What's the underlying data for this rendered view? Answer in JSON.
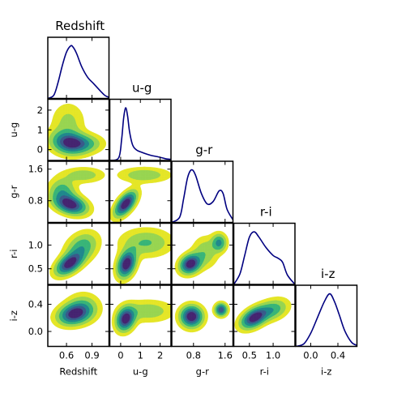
{
  "chart_data": {
    "type": "corner",
    "variables": [
      "Redshift",
      "u-g",
      "g-r",
      "r-i",
      "i-z"
    ],
    "colors": {
      "levels": [
        "#e5e629",
        "#99d653",
        "#3bb67a",
        "#22898e",
        "#3b5c8c",
        "#482672"
      ],
      "line": "#000080"
    },
    "ticks": {
      "Redshift": [
        0.6,
        0.9
      ],
      "u-g": [
        0,
        1,
        2
      ],
      "g-r": [
        0.8,
        1.6
      ],
      "r-i": [
        0.5,
        1.0
      ],
      "i-z": [
        0.0,
        0.4
      ]
    },
    "tick_labels": {
      "Redshift": [
        "0.6",
        "0.9"
      ],
      "u-g": [
        "0",
        "1",
        "2"
      ],
      "g-r": [
        "0.8",
        "1.6"
      ],
      "r-i": [
        "0.5",
        "1.0"
      ],
      "i-z": [
        "0.0",
        "0.4"
      ]
    },
    "ranges": {
      "Redshift": [
        0.38,
        1.1
      ],
      "u-g": [
        -0.55,
        2.55
      ],
      "g-r": [
        0.25,
        1.8
      ],
      "r-i": [
        0.17,
        1.46
      ],
      "i-z": [
        -0.22,
        0.68
      ]
    },
    "marginals": [
      {
        "variable": "Redshift",
        "x": [
          0.38,
          0.45,
          0.5,
          0.55,
          0.6,
          0.65,
          0.68,
          0.72,
          0.78,
          0.85,
          0.92,
          1.0,
          1.05,
          1.1
        ],
        "density": [
          0.0,
          0.06,
          0.3,
          0.62,
          0.88,
          1.0,
          0.97,
          0.85,
          0.6,
          0.4,
          0.28,
          0.14,
          0.06,
          0.02
        ]
      },
      {
        "variable": "u-g",
        "x": [
          -0.55,
          -0.1,
          0.05,
          0.15,
          0.25,
          0.35,
          0.45,
          0.6,
          0.8,
          1.1,
          1.5,
          2.0,
          2.3,
          2.55
        ],
        "density": [
          0.0,
          0.05,
          0.4,
          0.8,
          1.0,
          0.85,
          0.55,
          0.3,
          0.2,
          0.15,
          0.1,
          0.06,
          0.03,
          0.02
        ]
      },
      {
        "variable": "g-r",
        "x": [
          0.25,
          0.45,
          0.55,
          0.65,
          0.75,
          0.85,
          1.0,
          1.15,
          1.3,
          1.45,
          1.55,
          1.65,
          1.8
        ],
        "density": [
          0.0,
          0.1,
          0.45,
          0.85,
          1.0,
          0.9,
          0.55,
          0.35,
          0.4,
          0.6,
          0.55,
          0.25,
          0.05
        ]
      },
      {
        "variable": "r-i",
        "x": [
          0.17,
          0.3,
          0.4,
          0.5,
          0.6,
          0.7,
          0.85,
          1.0,
          1.1,
          1.2,
          1.3,
          1.46
        ],
        "density": [
          0.0,
          0.2,
          0.55,
          0.9,
          1.0,
          0.9,
          0.7,
          0.55,
          0.5,
          0.42,
          0.18,
          0.0
        ]
      },
      {
        "variable": "i-z",
        "x": [
          -0.22,
          -0.1,
          0.0,
          0.1,
          0.2,
          0.28,
          0.35,
          0.42,
          0.5,
          0.6,
          0.68
        ],
        "density": [
          0.0,
          0.05,
          0.25,
          0.55,
          0.85,
          1.0,
          0.85,
          0.6,
          0.3,
          0.08,
          0.02
        ]
      }
    ],
    "joint_densities": [
      {
        "x": "Redshift",
        "y": "u-g",
        "peaks": [
          {
            "cx": 0.62,
            "cy": 0.35,
            "sx": 0.13,
            "sy": 0.38,
            "rho": -0.15,
            "w": 1.0
          },
          {
            "cx": 0.8,
            "cy": 0.3,
            "sx": 0.14,
            "sy": 0.3,
            "rho": 0.0,
            "w": 0.55
          },
          {
            "cx": 0.62,
            "cy": 1.4,
            "sx": 0.12,
            "sy": 0.6,
            "rho": 0.0,
            "w": 0.3
          }
        ]
      },
      {
        "x": "u-g",
        "y": "g-r",
        "peaks": [
          {
            "cx": 0.25,
            "cy": 0.72,
            "sx": 0.35,
            "sy": 0.2,
            "rho": 0.6,
            "w": 1.0
          },
          {
            "cx": 1.2,
            "cy": 1.45,
            "sx": 0.8,
            "sy": 0.12,
            "rho": 0.0,
            "w": 0.3
          }
        ]
      },
      {
        "x": "Redshift",
        "y": "g-r",
        "peaks": [
          {
            "cx": 0.65,
            "cy": 0.7,
            "sx": 0.12,
            "sy": 0.16,
            "rho": -0.3,
            "w": 1.0
          },
          {
            "cx": 0.55,
            "cy": 1.05,
            "sx": 0.1,
            "sy": 0.2,
            "rho": 0.0,
            "w": 0.45
          },
          {
            "cx": 0.8,
            "cy": 1.45,
            "sx": 0.15,
            "sy": 0.12,
            "rho": 0.0,
            "w": 0.3
          }
        ]
      },
      {
        "x": "Redshift",
        "y": "r-i",
        "peaks": [
          {
            "cx": 0.63,
            "cy": 0.6,
            "sx": 0.1,
            "sy": 0.15,
            "rho": 0.5,
            "w": 1.0
          },
          {
            "cx": 0.78,
            "cy": 0.95,
            "sx": 0.12,
            "sy": 0.2,
            "rho": 0.3,
            "w": 0.5
          }
        ]
      },
      {
        "x": "u-g",
        "y": "r-i",
        "peaks": [
          {
            "cx": 0.3,
            "cy": 0.6,
            "sx": 0.3,
            "sy": 0.18,
            "rho": 0.3,
            "w": 1.0
          },
          {
            "cx": 1.3,
            "cy": 1.05,
            "sx": 0.8,
            "sy": 0.18,
            "rho": 0.0,
            "w": 0.35
          }
        ]
      },
      {
        "x": "g-r",
        "y": "r-i",
        "peaks": [
          {
            "cx": 0.72,
            "cy": 0.6,
            "sx": 0.17,
            "sy": 0.13,
            "rho": 0.2,
            "w": 1.0
          },
          {
            "cx": 1.45,
            "cy": 1.05,
            "sx": 0.12,
            "sy": 0.12,
            "rho": 0.0,
            "w": 0.55
          },
          {
            "cx": 1.1,
            "cy": 0.85,
            "sx": 0.2,
            "sy": 0.2,
            "rho": 0.0,
            "w": 0.3
          }
        ]
      },
      {
        "x": "Redshift",
        "y": "i-z",
        "peaks": [
          {
            "cx": 0.68,
            "cy": 0.25,
            "sx": 0.12,
            "sy": 0.1,
            "rho": 0.2,
            "w": 1.0
          },
          {
            "cx": 0.8,
            "cy": 0.35,
            "sx": 0.12,
            "sy": 0.13,
            "rho": 0.0,
            "w": 0.4
          }
        ]
      },
      {
        "x": "u-g",
        "y": "i-z",
        "peaks": [
          {
            "cx": 0.25,
            "cy": 0.18,
            "sx": 0.3,
            "sy": 0.11,
            "rho": 0.2,
            "w": 1.0
          },
          {
            "cx": 1.4,
            "cy": 0.3,
            "sx": 0.8,
            "sy": 0.1,
            "rho": 0.0,
            "w": 0.3
          }
        ]
      },
      {
        "x": "g-r",
        "y": "i-z",
        "peaks": [
          {
            "cx": 0.75,
            "cy": 0.22,
            "sx": 0.18,
            "sy": 0.1,
            "rho": 0.0,
            "w": 1.0
          },
          {
            "cx": 1.5,
            "cy": 0.32,
            "sx": 0.1,
            "sy": 0.06,
            "rho": 0.0,
            "w": 0.8
          }
        ]
      },
      {
        "x": "r-i",
        "y": "i-z",
        "peaks": [
          {
            "cx": 0.6,
            "cy": 0.2,
            "sx": 0.18,
            "sy": 0.1,
            "rho": 0.45,
            "w": 1.0
          },
          {
            "cx": 1.0,
            "cy": 0.32,
            "sx": 0.2,
            "sy": 0.1,
            "rho": 0.3,
            "w": 0.45
          }
        ]
      }
    ]
  }
}
